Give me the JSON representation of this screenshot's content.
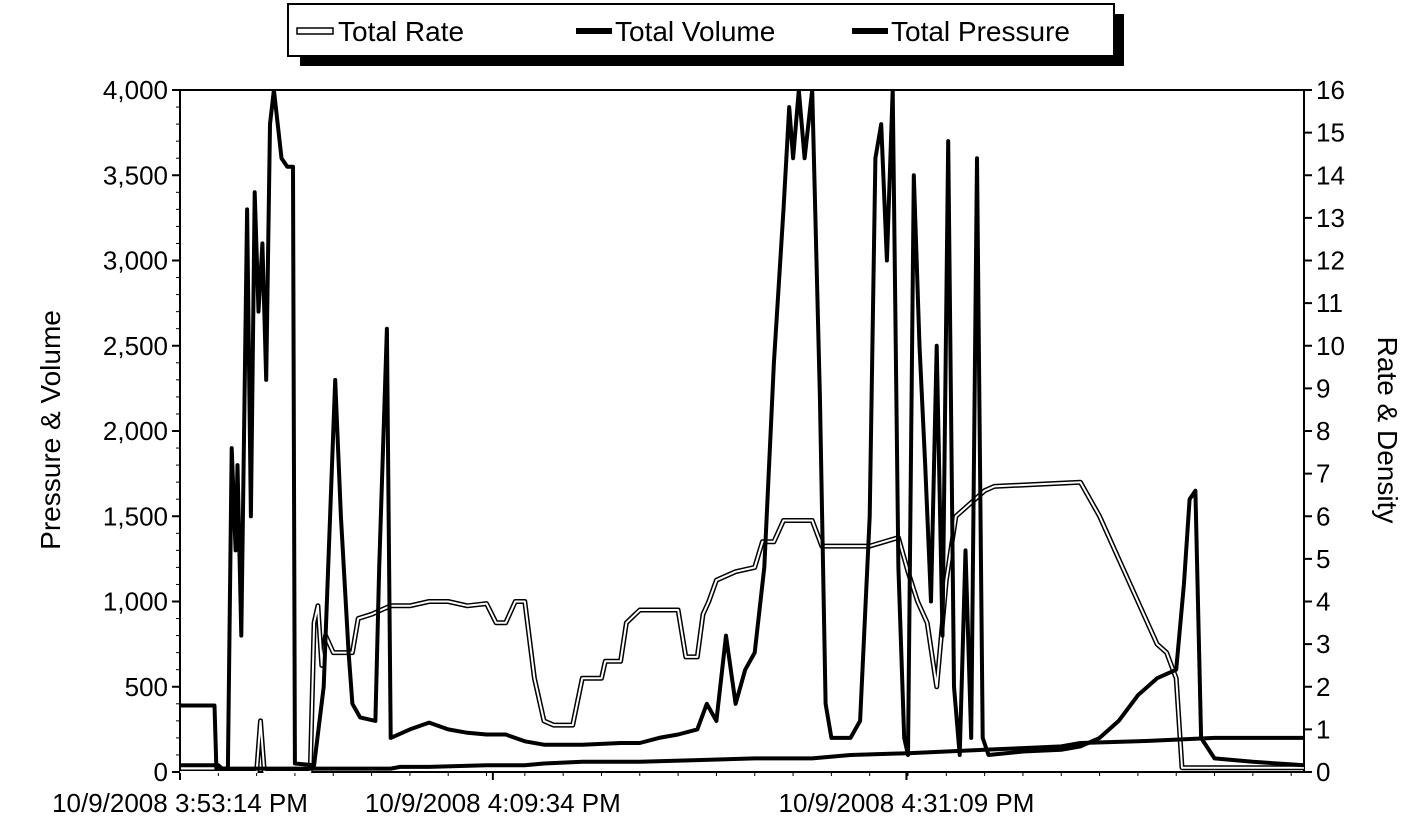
{
  "chart_data": {
    "type": "line",
    "title": "",
    "legend": {
      "placement": "top",
      "entries": [
        "Total Rate",
        "Total Volume",
        "Total Pressure"
      ]
    },
    "y_left": {
      "label": "Pressure & Volume",
      "range": [
        0,
        4000
      ],
      "ticks": [
        "0",
        "500",
        "1,000",
        "1,500",
        "2,000",
        "2,500",
        "3,000",
        "3,500",
        "4,000"
      ]
    },
    "y_right": {
      "label": "Rate & Density",
      "range": [
        0,
        16
      ],
      "ticks": [
        "0",
        "1",
        "2",
        "3",
        "4",
        "5",
        "6",
        "7",
        "8",
        "9",
        "10",
        "11",
        "12",
        "13",
        "14",
        "15",
        "16"
      ]
    },
    "x_axis": {
      "label": "",
      "ticks": [
        "10/9/2008 3:53:14 PM",
        "10/9/2008 4:09:34 PM",
        "10/9/2008 4:31:09 PM"
      ],
      "tick_minutes": [
        0,
        16.33,
        37.92
      ],
      "range_minutes": [
        0,
        58.67
      ]
    },
    "grid": false,
    "series": [
      {
        "name": "Total Rate",
        "axis": "right",
        "color": "#ffffff",
        "outline": "#000000",
        "points": [
          [
            0,
            0
          ],
          [
            4,
            0
          ],
          [
            4.2,
            1.2
          ],
          [
            4.4,
            0
          ],
          [
            6.8,
            0
          ],
          [
            7.0,
            3.5
          ],
          [
            7.2,
            3.9
          ],
          [
            7.4,
            2.5
          ],
          [
            7.6,
            3.2
          ],
          [
            8.0,
            2.8
          ],
          [
            9.0,
            2.8
          ],
          [
            9.3,
            3.6
          ],
          [
            10.0,
            3.7
          ],
          [
            10.5,
            3.8
          ],
          [
            11.0,
            3.9
          ],
          [
            12.0,
            3.9
          ],
          [
            13.0,
            4.0
          ],
          [
            14.0,
            4.0
          ],
          [
            15.0,
            3.9
          ],
          [
            16.0,
            3.95
          ],
          [
            16.5,
            3.5
          ],
          [
            17.0,
            3.5
          ],
          [
            17.5,
            4.0
          ],
          [
            18.0,
            4.0
          ],
          [
            18.5,
            2.2
          ],
          [
            19.0,
            1.2
          ],
          [
            19.5,
            1.1
          ],
          [
            20.5,
            1.1
          ],
          [
            21.0,
            2.2
          ],
          [
            22.0,
            2.2
          ],
          [
            22.2,
            2.6
          ],
          [
            23.0,
            2.6
          ],
          [
            23.3,
            3.5
          ],
          [
            24.0,
            3.8
          ],
          [
            26.0,
            3.8
          ],
          [
            26.4,
            2.7
          ],
          [
            27.0,
            2.7
          ],
          [
            27.3,
            3.7
          ],
          [
            27.6,
            4.0
          ],
          [
            28.0,
            4.5
          ],
          [
            29.0,
            4.7
          ],
          [
            30.0,
            4.8
          ],
          [
            30.4,
            5.4
          ],
          [
            31.0,
            5.4
          ],
          [
            31.5,
            5.9
          ],
          [
            33.0,
            5.9
          ],
          [
            33.5,
            5.3
          ],
          [
            36.0,
            5.3
          ],
          [
            37.5,
            5.5
          ],
          [
            38.0,
            4.7
          ],
          [
            38.5,
            4.0
          ],
          [
            39.0,
            3.5
          ],
          [
            39.5,
            2.0
          ],
          [
            40.0,
            4.5
          ],
          [
            40.5,
            6.0
          ],
          [
            42.0,
            6.6
          ],
          [
            42.5,
            6.7
          ],
          [
            47.0,
            6.8
          ],
          [
            48.0,
            6.0
          ],
          [
            49.0,
            5.0
          ],
          [
            50.0,
            4.0
          ],
          [
            51.0,
            3.0
          ],
          [
            51.5,
            2.8
          ],
          [
            52.0,
            2.2
          ],
          [
            52.3,
            0.1
          ],
          [
            58.67,
            0.1
          ]
        ]
      },
      {
        "name": "Total Volume",
        "axis": "left",
        "color": "#000000",
        "points": [
          [
            0,
            40
          ],
          [
            2,
            40
          ],
          [
            2.2,
            20
          ],
          [
            8,
            20
          ],
          [
            11,
            20
          ],
          [
            11.5,
            30
          ],
          [
            13,
            30
          ],
          [
            16,
            40
          ],
          [
            18,
            40
          ],
          [
            19,
            50
          ],
          [
            21,
            60
          ],
          [
            24,
            60
          ],
          [
            27,
            70
          ],
          [
            30,
            80
          ],
          [
            33,
            80
          ],
          [
            35,
            100
          ],
          [
            38,
            110
          ],
          [
            40,
            120
          ],
          [
            42,
            130
          ],
          [
            44,
            140
          ],
          [
            46,
            150
          ],
          [
            47,
            170
          ],
          [
            50,
            180
          ],
          [
            52,
            190
          ],
          [
            54,
            200
          ],
          [
            56,
            200
          ],
          [
            58.67,
            200
          ]
        ]
      },
      {
        "name": "Total Pressure",
        "axis": "left",
        "color": "#000000",
        "points": [
          [
            0,
            390
          ],
          [
            1.8,
            390
          ],
          [
            1.9,
            20
          ],
          [
            2.5,
            20
          ],
          [
            2.7,
            1900
          ],
          [
            2.9,
            1300
          ],
          [
            3.0,
            1800
          ],
          [
            3.2,
            800
          ],
          [
            3.5,
            3300
          ],
          [
            3.7,
            1500
          ],
          [
            3.9,
            3400
          ],
          [
            4.1,
            2700
          ],
          [
            4.3,
            3100
          ],
          [
            4.5,
            2300
          ],
          [
            4.7,
            3800
          ],
          [
            4.9,
            4000
          ],
          [
            5.3,
            3600
          ],
          [
            5.6,
            3550
          ],
          [
            5.9,
            3550
          ],
          [
            6.0,
            50
          ],
          [
            7.0,
            40
          ],
          [
            7.5,
            500
          ],
          [
            8.1,
            2300
          ],
          [
            8.4,
            1500
          ],
          [
            8.8,
            700
          ],
          [
            9.0,
            400
          ],
          [
            9.4,
            320
          ],
          [
            10.2,
            300
          ],
          [
            10.4,
            1200
          ],
          [
            10.8,
            2600
          ],
          [
            11.0,
            200
          ],
          [
            12.0,
            250
          ],
          [
            13.0,
            290
          ],
          [
            14.0,
            250
          ],
          [
            15.0,
            230
          ],
          [
            16.0,
            220
          ],
          [
            17.0,
            220
          ],
          [
            18.0,
            180
          ],
          [
            19.0,
            160
          ],
          [
            21.0,
            160
          ],
          [
            23.0,
            170
          ],
          [
            24.0,
            170
          ],
          [
            25.0,
            200
          ],
          [
            26.0,
            220
          ],
          [
            27.0,
            250
          ],
          [
            27.5,
            400
          ],
          [
            28.0,
            300
          ],
          [
            28.5,
            800
          ],
          [
            29.0,
            400
          ],
          [
            29.5,
            600
          ],
          [
            30.0,
            700
          ],
          [
            30.5,
            1200
          ],
          [
            31.0,
            2400
          ],
          [
            31.5,
            3300
          ],
          [
            31.8,
            3900
          ],
          [
            32.0,
            3600
          ],
          [
            32.3,
            4000
          ],
          [
            32.6,
            3600
          ],
          [
            33.0,
            4000
          ],
          [
            33.4,
            2200
          ],
          [
            33.7,
            400
          ],
          [
            34.0,
            200
          ],
          [
            35.0,
            200
          ],
          [
            35.5,
            300
          ],
          [
            36.0,
            1500
          ],
          [
            36.3,
            3600
          ],
          [
            36.6,
            3800
          ],
          [
            36.9,
            3000
          ],
          [
            37.2,
            4000
          ],
          [
            37.5,
            1200
          ],
          [
            37.8,
            200
          ],
          [
            38.0,
            100
          ],
          [
            38.3,
            3500
          ],
          [
            38.6,
            2500
          ],
          [
            38.9,
            1800
          ],
          [
            39.2,
            1000
          ],
          [
            39.5,
            2500
          ],
          [
            39.8,
            800
          ],
          [
            40.1,
            3700
          ],
          [
            40.4,
            500
          ],
          [
            40.7,
            100
          ],
          [
            41.0,
            1300
          ],
          [
            41.3,
            200
          ],
          [
            41.6,
            3600
          ],
          [
            41.9,
            200
          ],
          [
            42.2,
            100
          ],
          [
            44.0,
            120
          ],
          [
            46.0,
            130
          ],
          [
            47.0,
            150
          ],
          [
            48.0,
            200
          ],
          [
            49.0,
            300
          ],
          [
            50.0,
            450
          ],
          [
            51.0,
            550
          ],
          [
            52.0,
            600
          ],
          [
            52.4,
            1100
          ],
          [
            52.7,
            1600
          ],
          [
            53.0,
            1650
          ],
          [
            53.3,
            200
          ],
          [
            54.0,
            80
          ],
          [
            56.0,
            60
          ],
          [
            58.67,
            40
          ]
        ]
      }
    ]
  }
}
